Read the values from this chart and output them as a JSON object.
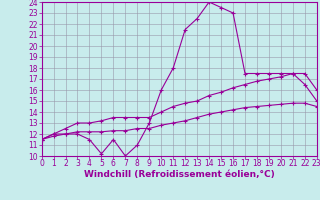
{
  "background_color": "#c8ecec",
  "line_color": "#990099",
  "grid_color": "#9999aa",
  "xlabel": "Windchill (Refroidissement éolien,°C)",
  "xlabel_fontsize": 6.5,
  "xtick_fontsize": 5.5,
  "ytick_fontsize": 5.5,
  "ylim": [
    10,
    24
  ],
  "xlim": [
    0,
    23
  ],
  "yticks": [
    10,
    11,
    12,
    13,
    14,
    15,
    16,
    17,
    18,
    19,
    20,
    21,
    22,
    23,
    24
  ],
  "xticks": [
    0,
    1,
    2,
    3,
    4,
    5,
    6,
    7,
    8,
    9,
    10,
    11,
    12,
    13,
    14,
    15,
    16,
    17,
    18,
    19,
    20,
    21,
    22,
    23
  ],
  "line1_x": [
    0,
    1,
    2,
    3,
    4,
    5,
    6,
    7,
    8,
    9,
    10,
    11,
    12,
    13,
    14,
    15,
    16,
    17,
    18,
    19,
    20,
    21,
    22,
    23
  ],
  "line1_y": [
    11.5,
    12.0,
    12.0,
    12.0,
    11.5,
    10.2,
    11.5,
    10.0,
    11.0,
    13.0,
    16.0,
    18.0,
    21.5,
    22.5,
    24.0,
    23.5,
    23.0,
    17.5,
    17.5,
    17.5,
    17.5,
    17.5,
    16.5,
    15.0
  ],
  "line2_x": [
    0,
    1,
    2,
    3,
    4,
    5,
    6,
    7,
    8,
    9,
    10,
    11,
    12,
    13,
    14,
    15,
    16,
    17,
    18,
    19,
    20,
    21,
    22,
    23
  ],
  "line2_y": [
    11.5,
    12.0,
    12.5,
    13.0,
    13.0,
    13.2,
    13.5,
    13.5,
    13.5,
    13.5,
    14.0,
    14.5,
    14.8,
    15.0,
    15.5,
    15.8,
    16.2,
    16.5,
    16.8,
    17.0,
    17.2,
    17.5,
    17.5,
    16.0
  ],
  "line3_x": [
    0,
    1,
    2,
    3,
    4,
    5,
    6,
    7,
    8,
    9,
    10,
    11,
    12,
    13,
    14,
    15,
    16,
    17,
    18,
    19,
    20,
    21,
    22,
    23
  ],
  "line3_y": [
    11.5,
    11.8,
    12.0,
    12.2,
    12.2,
    12.2,
    12.3,
    12.3,
    12.5,
    12.5,
    12.8,
    13.0,
    13.2,
    13.5,
    13.8,
    14.0,
    14.2,
    14.4,
    14.5,
    14.6,
    14.7,
    14.8,
    14.8,
    14.5
  ]
}
